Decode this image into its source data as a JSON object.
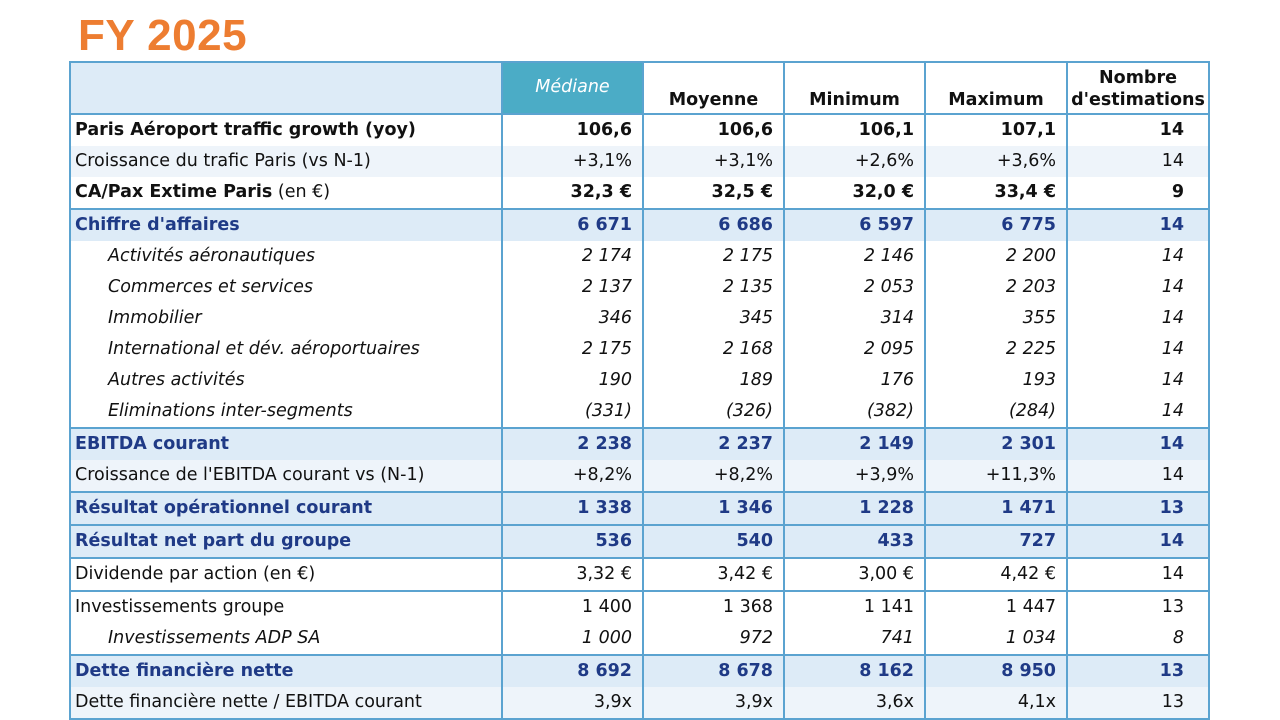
{
  "title": "FY 2025",
  "headers": {
    "label": "",
    "mediane": "Médiane",
    "moyenne": "Moyenne",
    "minimum": "Minimum",
    "maximum": "Maximum",
    "nombre_line1": "Nombre",
    "nombre_line2": "d'estimations"
  },
  "colors": {
    "title": "#ED7D31",
    "border": "#5BA3D0",
    "header_highlight": "#4BACC6",
    "band_fill": "#DDEBF7",
    "band_text": "#1F3A86"
  },
  "rows": [
    {
      "label": "Paris Aéroport traffic growth (yoy)",
      "unit": "",
      "mediane": "106,6",
      "moyenne": "106,6",
      "minimum": "106,1",
      "maximum": "107,1",
      "nombre": "14"
    },
    {
      "label": "Croissance du trafic Paris (vs N-1)",
      "unit": "",
      "mediane": "+3,1%",
      "moyenne": "+3,1%",
      "minimum": "+2,6%",
      "maximum": "+3,6%",
      "nombre": "14"
    },
    {
      "label": "CA/Pax Extime Paris",
      "unit": " (en €)",
      "mediane": "32,3 €",
      "moyenne": "32,5 €",
      "minimum": "32,0 €",
      "maximum": "33,4 €",
      "nombre": "9"
    },
    {
      "label": "Chiffre d'affaires",
      "unit": "",
      "mediane": "6 671",
      "moyenne": "6 686",
      "minimum": "6 597",
      "maximum": "6 775",
      "nombre": "14"
    },
    {
      "label": "Activités aéronautiques",
      "unit": "",
      "mediane": "2 174",
      "moyenne": "2 175",
      "minimum": "2 146",
      "maximum": "2 200",
      "nombre": "14"
    },
    {
      "label": "Commerces et services",
      "unit": "",
      "mediane": "2 137",
      "moyenne": "2 135",
      "minimum": "2 053",
      "maximum": "2 203",
      "nombre": "14"
    },
    {
      "label": "Immobilier",
      "unit": "",
      "mediane": "346",
      "moyenne": "345",
      "minimum": "314",
      "maximum": "355",
      "nombre": "14"
    },
    {
      "label": "International et dév. aéroportuaires",
      "unit": "",
      "mediane": "2 175",
      "moyenne": "2 168",
      "minimum": "2 095",
      "maximum": "2 225",
      "nombre": "14"
    },
    {
      "label": "Autres activités",
      "unit": "",
      "mediane": "190",
      "moyenne": "189",
      "minimum": "176",
      "maximum": "193",
      "nombre": "14"
    },
    {
      "label": "Eliminations inter-segments",
      "unit": "",
      "mediane": "(331)",
      "moyenne": "(326)",
      "minimum": "(382)",
      "maximum": "(284)",
      "nombre": "14"
    },
    {
      "label": "EBITDA courant",
      "unit": "",
      "mediane": "2 238",
      "moyenne": "2 237",
      "minimum": "2 149",
      "maximum": "2 301",
      "nombre": "14"
    },
    {
      "label": "Croissance de l'EBITDA courant vs (N-1)",
      "unit": "",
      "mediane": "+8,2%",
      "moyenne": "+8,2%",
      "minimum": "+3,9%",
      "maximum": "+11,3%",
      "nombre": "14"
    },
    {
      "label": "Résultat opérationnel courant",
      "unit": "",
      "mediane": "1 338",
      "moyenne": "1 346",
      "minimum": "1 228",
      "maximum": "1 471",
      "nombre": "13"
    },
    {
      "label": "Résultat net part du groupe",
      "unit": "",
      "mediane": "536",
      "moyenne": "540",
      "minimum": "433",
      "maximum": "727",
      "nombre": "14"
    },
    {
      "label": "Dividende par action (en €)",
      "unit": "",
      "mediane": "3,32 €",
      "moyenne": "3,42 €",
      "minimum": "3,00 €",
      "maximum": "4,42 €",
      "nombre": "14"
    },
    {
      "label": "Investissements groupe",
      "unit": "",
      "mediane": "1 400",
      "moyenne": "1 368",
      "minimum": "1 141",
      "maximum": "1 447",
      "nombre": "13"
    },
    {
      "label": "Investissements ADP SA",
      "unit": "",
      "mediane": "1 000",
      "moyenne": "972",
      "minimum": "741",
      "maximum": "1 034",
      "nombre": "8"
    },
    {
      "label": "Dette financière nette",
      "unit": "",
      "mediane": "8 692",
      "moyenne": "8 678",
      "minimum": "8 162",
      "maximum": "8 950",
      "nombre": "13"
    },
    {
      "label": "Dette financière nette / EBITDA courant",
      "unit": "",
      "mediane": "3,9x",
      "moyenne": "3,9x",
      "minimum": "3,6x",
      "maximum": "4,1x",
      "nombre": "13"
    }
  ]
}
